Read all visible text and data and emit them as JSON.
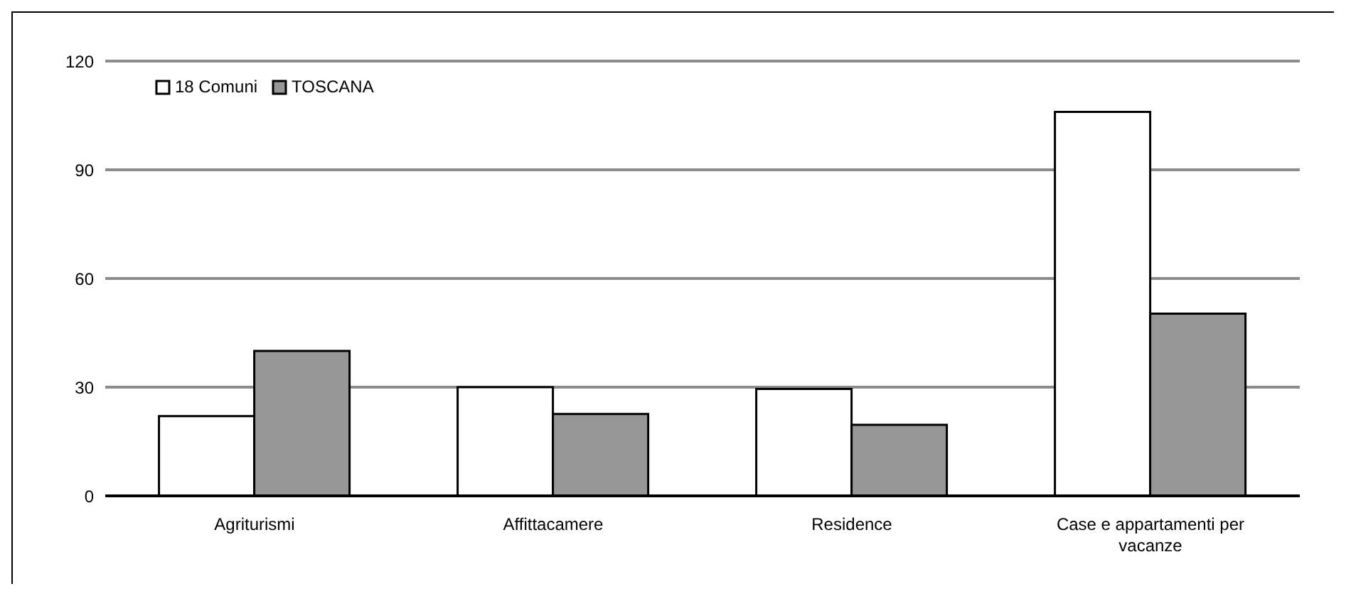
{
  "chart_data": {
    "type": "bar",
    "categories": [
      "Agriturismi",
      "Affittacamere",
      "Residence",
      "Case e appartamenti per vacanze"
    ],
    "series": [
      {
        "name": "18 Comuni",
        "color": "#ffffff",
        "values": [
          22,
          30,
          29.5,
          106
        ]
      },
      {
        "name": "TOSCANA",
        "color": "#969696",
        "values": [
          40,
          22.6,
          19.6,
          50.3
        ]
      }
    ],
    "ylim": [
      0,
      120
    ],
    "yticks": [
      0,
      30,
      60,
      90,
      120
    ],
    "grid": "y",
    "legend": "top left"
  }
}
